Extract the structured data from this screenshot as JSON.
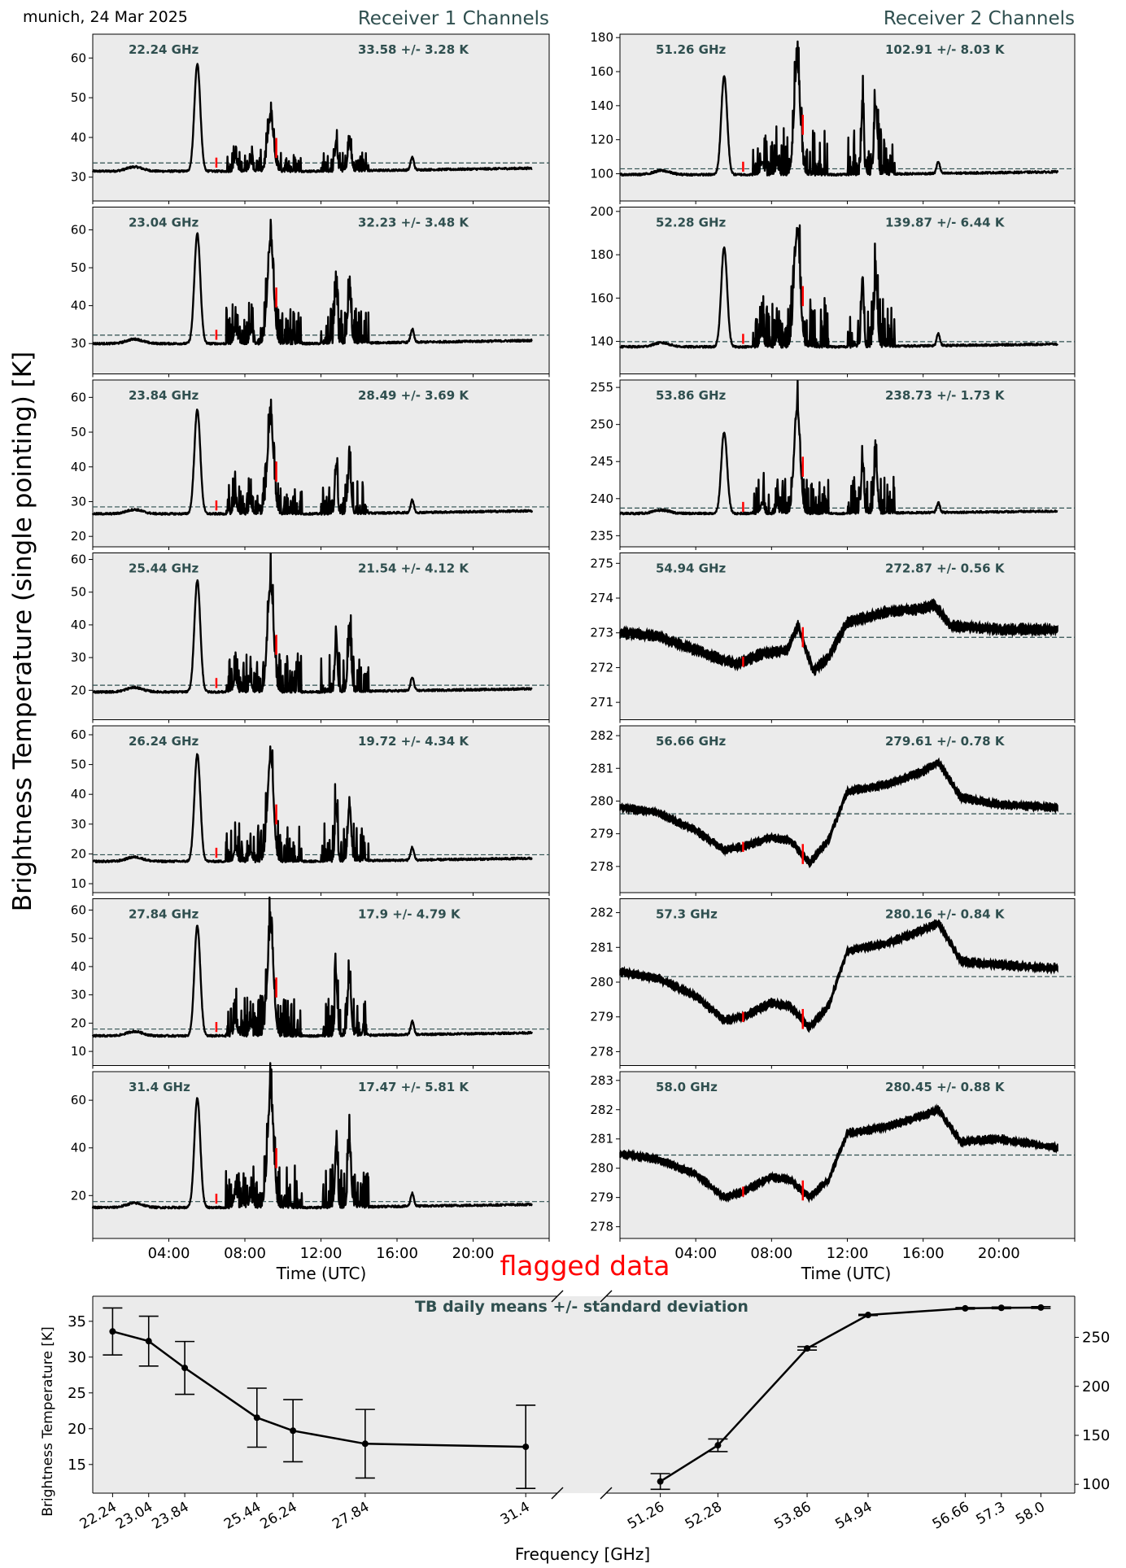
{
  "figure": {
    "header_left": "munich, 24 Mar 2025",
    "receiver1_title": "Receiver 1 Channels",
    "receiver2_title": "Receiver 2 Channels",
    "y_label": "Brightness Temperature (single pointing) [K]",
    "x_label_left": "Time (UTC)",
    "x_label_right": "Time (UTC)",
    "flag_label": "flagged data",
    "colors": {
      "panel_bg": "#ebebeb",
      "annotation": "#2f4f4f",
      "data": "#000000",
      "flagged": "#ff0000",
      "mean_line": "#2f4f4f"
    }
  },
  "chart_data": [
    {
      "type": "line",
      "receiver": 1,
      "x_axis": {
        "unit": "UTC hour",
        "range": [
          0,
          24
        ],
        "ticks": [
          "04:00",
          "08:00",
          "12:00",
          "16:00",
          "20:00"
        ],
        "tick_hours": [
          4,
          8,
          12,
          16,
          20
        ]
      },
      "panels": [
        {
          "freq_label": "22.24 GHz",
          "stats_label": "33.58 +/- 3.28 K",
          "mean": 33.58,
          "baseline": 31.5,
          "ylim": [
            24,
            66
          ],
          "yticks": [
            30,
            40,
            50,
            60
          ],
          "peak_height": [
            27,
            13,
            7.5,
            7
          ]
        },
        {
          "freq_label": "23.04 GHz",
          "stats_label": "32.23 +/- 3.48 K",
          "mean": 32.23,
          "baseline": 30.0,
          "ylim": [
            22,
            66
          ],
          "yticks": [
            30,
            40,
            50,
            60
          ],
          "peak_height": [
            29,
            27,
            14,
            13
          ]
        },
        {
          "freq_label": "23.84 GHz",
          "stats_label": "28.49 +/- 3.69 K",
          "mean": 28.49,
          "baseline": 26.5,
          "ylim": [
            17,
            65
          ],
          "yticks": [
            20,
            30,
            40,
            50,
            60
          ],
          "peak_height": [
            30,
            27,
            13,
            13
          ]
        },
        {
          "freq_label": "25.44 GHz",
          "stats_label": "21.54 +/- 4.12 K",
          "mean": 21.54,
          "baseline": 19.5,
          "ylim": [
            11,
            62
          ],
          "yticks": [
            20,
            30,
            40,
            50,
            60
          ],
          "peak_height": [
            34,
            32,
            17,
            17
          ]
        },
        {
          "freq_label": "26.24 GHz",
          "stats_label": "19.72 +/- 4.34 K",
          "mean": 19.72,
          "baseline": 17.5,
          "ylim": [
            7,
            63
          ],
          "yticks": [
            10,
            20,
            30,
            40,
            50,
            60
          ],
          "peak_height": [
            36,
            35,
            19,
            19
          ]
        },
        {
          "freq_label": "27.84 GHz",
          "stats_label": "17.9 +/- 4.79 K",
          "mean": 17.9,
          "baseline": 15.5,
          "ylim": [
            5,
            64
          ],
          "yticks": [
            10,
            20,
            30,
            40,
            50,
            60
          ],
          "peak_height": [
            39,
            38,
            20,
            20
          ]
        },
        {
          "freq_label": "31.4 GHz",
          "stats_label": "17.47 +/- 5.81 K",
          "mean": 17.47,
          "baseline": 15.0,
          "ylim": [
            2,
            72
          ],
          "yticks": [
            20,
            40,
            60
          ],
          "peak_height": [
            46,
            46,
            26,
            26
          ]
        }
      ]
    },
    {
      "type": "line",
      "receiver": 2,
      "x_axis": {
        "unit": "UTC hour",
        "range": [
          0,
          24
        ],
        "ticks": [
          "04:00",
          "08:00",
          "12:00",
          "16:00",
          "20:00"
        ],
        "tick_hours": [
          4,
          8,
          12,
          16,
          20
        ]
      },
      "panels": [
        {
          "freq_label": "51.26 GHz",
          "stats_label": "102.91 +/- 8.03 K",
          "mean": 102.91,
          "baseline": 99.5,
          "ylim": [
            84,
            182
          ],
          "yticks": [
            100,
            120,
            140,
            160,
            180
          ],
          "shape": "spikes",
          "peak_height": [
            58,
            65,
            40,
            40
          ]
        },
        {
          "freq_label": "52.28 GHz",
          "stats_label": "139.87 +/- 6.44 K",
          "mean": 139.87,
          "baseline": 137.5,
          "ylim": [
            125,
            202
          ],
          "yticks": [
            140,
            160,
            180,
            200
          ],
          "shape": "spikes",
          "peak_height": [
            46,
            52,
            32,
            30
          ]
        },
        {
          "freq_label": "53.86 GHz",
          "stats_label": "238.73 +/- 1.73 K",
          "mean": 238.73,
          "baseline": 238.0,
          "ylim": [
            233.5,
            256
          ],
          "yticks": [
            235,
            240,
            245,
            250,
            255
          ],
          "shape": "spikes",
          "peak_height": [
            11,
            14,
            7,
            7
          ]
        },
        {
          "freq_label": "54.94 GHz",
          "stats_label": "272.87 +/- 0.56 K",
          "mean": 272.87,
          "ylim": [
            270.5,
            275.3
          ],
          "yticks": [
            271,
            272,
            273,
            274,
            275
          ],
          "shape": "smooth",
          "band": 0.22,
          "profile": [
            [
              0,
              273.0
            ],
            [
              2,
              272.9
            ],
            [
              4.5,
              272.4
            ],
            [
              6.2,
              272.1
            ],
            [
              7.5,
              272.4
            ],
            [
              8.8,
              272.5
            ],
            [
              9.4,
              273.2
            ],
            [
              10.2,
              271.9
            ],
            [
              11,
              272.3
            ],
            [
              12,
              273.3
            ],
            [
              14,
              273.6
            ],
            [
              16,
              273.7
            ],
            [
              16.6,
              273.8
            ],
            [
              17.5,
              273.2
            ],
            [
              20,
              273.1
            ],
            [
              23,
              273.1
            ]
          ]
        },
        {
          "freq_label": "56.66 GHz",
          "stats_label": "279.61 +/- 0.78 K",
          "mean": 279.61,
          "ylim": [
            277.2,
            282.3
          ],
          "yticks": [
            278,
            279,
            280,
            281,
            282
          ],
          "shape": "smooth",
          "band": 0.18,
          "profile": [
            [
              0,
              279.8
            ],
            [
              2,
              279.65
            ],
            [
              4,
              279.1
            ],
            [
              5.5,
              278.5
            ],
            [
              6.5,
              278.6
            ],
            [
              8,
              278.9
            ],
            [
              9,
              278.8
            ],
            [
              10,
              278.1
            ],
            [
              11,
              278.8
            ],
            [
              12,
              280.3
            ],
            [
              14,
              280.5
            ],
            [
              16,
              280.9
            ],
            [
              16.8,
              281.2
            ],
            [
              18,
              280.1
            ],
            [
              20,
              279.9
            ],
            [
              23,
              279.8
            ]
          ]
        },
        {
          "freq_label": "57.3 GHz",
          "stats_label": "280.16 +/- 0.84 K",
          "mean": 280.16,
          "ylim": [
            277.6,
            282.4
          ],
          "yticks": [
            278,
            279,
            280,
            281,
            282
          ],
          "shape": "smooth",
          "band": 0.18,
          "profile": [
            [
              0,
              280.3
            ],
            [
              2,
              280.1
            ],
            [
              4,
              279.6
            ],
            [
              5.5,
              278.9
            ],
            [
              6.5,
              279.0
            ],
            [
              8,
              279.4
            ],
            [
              9,
              279.3
            ],
            [
              10,
              278.7
            ],
            [
              11,
              279.3
            ],
            [
              12,
              280.9
            ],
            [
              14,
              281.1
            ],
            [
              16,
              281.5
            ],
            [
              16.8,
              281.7
            ],
            [
              18,
              280.6
            ],
            [
              20,
              280.5
            ],
            [
              23,
              280.4
            ]
          ]
        },
        {
          "freq_label": "58.0 GHz",
          "stats_label": "280.45 +/- 0.88 K",
          "mean": 280.45,
          "ylim": [
            277.6,
            283.3
          ],
          "yticks": [
            278,
            279,
            280,
            281,
            282,
            283
          ],
          "shape": "smooth",
          "band": 0.2,
          "profile": [
            [
              0,
              280.5
            ],
            [
              2,
              280.3
            ],
            [
              4,
              279.8
            ],
            [
              5.5,
              279.0
            ],
            [
              6.5,
              279.2
            ],
            [
              8,
              279.7
            ],
            [
              9,
              279.6
            ],
            [
              10,
              279.0
            ],
            [
              11,
              279.6
            ],
            [
              12,
              281.2
            ],
            [
              14,
              281.4
            ],
            [
              16,
              281.8
            ],
            [
              16.8,
              282.0
            ],
            [
              18,
              280.9
            ],
            [
              20,
              281.0
            ],
            [
              23,
              280.7
            ]
          ]
        }
      ]
    },
    {
      "type": "line",
      "title": "TB daily means +/- standard deviation",
      "xlabel": "Frequency [GHz]",
      "ylabel_left": "Brightness Temperature [K]",
      "left_axis": {
        "xlim": [
          21.8,
          32.1
        ],
        "ylim": [
          11,
          38.5
        ],
        "yticks": [
          15,
          20,
          25,
          30,
          35
        ]
      },
      "right_axis": {
        "xlim": [
          50.3,
          58.6
        ],
        "ylim": [
          91,
          292
        ],
        "yticks": [
          100,
          150,
          200,
          250
        ]
      },
      "series": [
        {
          "x": [
            22.24,
            23.04,
            23.84,
            25.44,
            26.24,
            27.84,
            31.4
          ],
          "mean": [
            33.58,
            32.23,
            28.49,
            21.54,
            19.72,
            17.9,
            17.47
          ],
          "std": [
            3.28,
            3.48,
            3.69,
            4.12,
            4.34,
            4.79,
            5.81
          ]
        },
        {
          "x": [
            51.26,
            52.28,
            53.86,
            54.94,
            56.66,
            57.3,
            58.0
          ],
          "mean": [
            102.91,
            139.87,
            238.73,
            272.87,
            279.61,
            280.16,
            280.45
          ],
          "std": [
            8.03,
            6.44,
            1.73,
            0.56,
            0.78,
            0.84,
            0.88
          ]
        }
      ],
      "xtick_labels_left": [
        "22.24",
        "23.04",
        "23.84",
        "25.44",
        "26.24",
        "27.84",
        "31.4"
      ],
      "xtick_labels_right": [
        "51.26",
        "52.28",
        "53.86",
        "54.94",
        "56.66",
        "57.3",
        "58.0"
      ]
    }
  ]
}
